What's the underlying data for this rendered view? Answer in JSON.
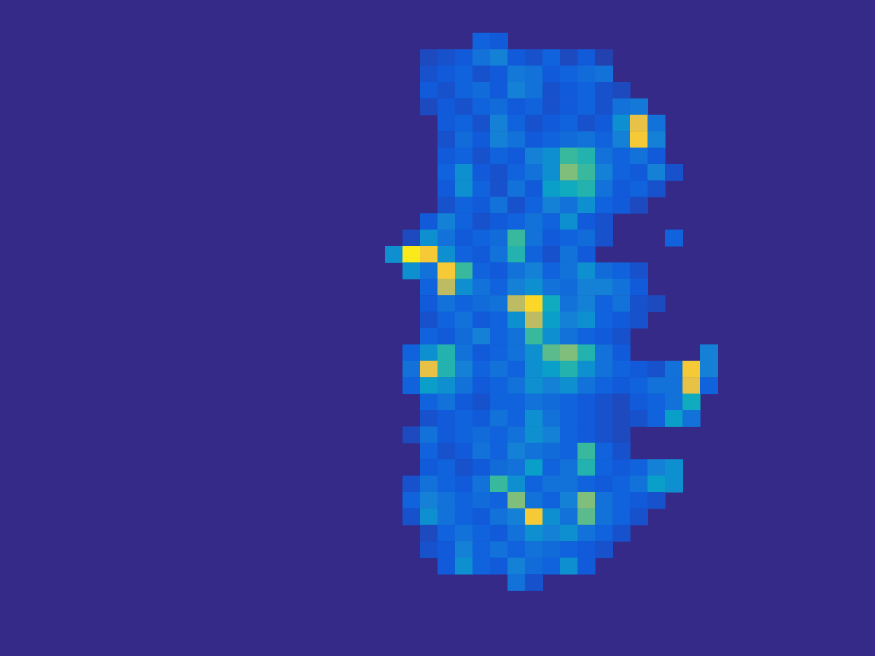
{
  "chart_data": {
    "type": "heatmap",
    "xlim": [
      0,
      50
    ],
    "ylim": [
      0,
      40
    ],
    "zlim": [
      0,
      1
    ],
    "tick_labels": false,
    "cells": [
      {
        "row": 2,
        "col": 27,
        "values": [
          0.15,
          0.12
        ]
      },
      {
        "row": 3,
        "col": 24,
        "values": [
          0.08,
          0.1,
          0.12,
          0.2,
          0.25,
          0.12,
          0.1,
          0.15,
          0.08,
          0.12,
          0.06
        ]
      },
      {
        "row": 4,
        "col": 24,
        "values": [
          0.1,
          0.12,
          0.15,
          0.1,
          0.12,
          0.22,
          0.2,
          0.12,
          0.15,
          0.18,
          0.2
        ]
      },
      {
        "row": 5,
        "col": 24,
        "values": [
          0.12,
          0.1,
          0.15,
          0.18,
          0.12,
          0.25,
          0.2,
          0.1,
          0.12,
          0.15,
          0.1,
          0.08
        ]
      },
      {
        "row": 6,
        "col": 24,
        "values": [
          0.08,
          0.12,
          0.1,
          0.15,
          0.18,
          0.12,
          0.15,
          0.1,
          0.12,
          0.15,
          0.1,
          0.2,
          0.22
        ]
      },
      {
        "row": 7,
        "col": 25,
        "values": [
          0.12,
          0.15,
          0.1,
          0.25,
          0.15,
          0.1,
          0.12,
          0.15,
          0.1,
          0.12,
          0.3,
          0.8,
          0.2
        ]
      },
      {
        "row": 8,
        "col": 25,
        "values": [
          0.1,
          0.18,
          0.12,
          0.25,
          0.2,
          0.12,
          0.15,
          0.18,
          0.2,
          0.15,
          0.25,
          0.85,
          0.25
        ]
      },
      {
        "row": 9,
        "col": 25,
        "values": [
          0.12,
          0.15,
          0.1,
          0.15,
          0.12,
          0.25,
          0.3,
          0.5,
          0.45,
          0.2,
          0.15,
          0.2,
          0.12
        ]
      },
      {
        "row": 10,
        "col": 25,
        "values": [
          0.15,
          0.3,
          0.12,
          0.1,
          0.15,
          0.2,
          0.3,
          0.6,
          0.5,
          0.25,
          0.15,
          0.12,
          0.25,
          0.1
        ]
      },
      {
        "row": 11,
        "col": 25,
        "values": [
          0.12,
          0.3,
          0.15,
          0.1,
          0.2,
          0.12,
          0.35,
          0.4,
          0.45,
          0.2,
          0.12,
          0.15,
          0.1
        ]
      },
      {
        "row": 12,
        "col": 25,
        "values": [
          0.1,
          0.15,
          0.12,
          0.2,
          0.1,
          0.15,
          0.25,
          0.2,
          0.3,
          0.15,
          0.12,
          0.08
        ]
      },
      {
        "row": 13,
        "col": 24,
        "values": [
          0.12,
          0.25,
          0.15,
          0.1,
          0.12,
          0.15,
          0.2,
          0.15,
          0.3,
          0.12,
          0.1
        ]
      },
      {
        "row": 14,
        "col": 23,
        "values": [
          0.08,
          0.3,
          0.2,
          0.12,
          0.15,
          0.18,
          0.5,
          0.2,
          0.12,
          0.15,
          0.18,
          0.1
        ]
      },
      {
        "row": 14,
        "col": 38,
        "values": [
          0.15
        ]
      },
      {
        "row": 15,
        "col": 22,
        "values": [
          0.3,
          0.95,
          0.85,
          0.3,
          0.15,
          0.12,
          0.2,
          0.45,
          0.15,
          0.1,
          0.2,
          0.12
        ]
      },
      {
        "row": 16,
        "col": 23,
        "values": [
          0.3,
          0.2,
          0.85,
          0.5,
          0.15,
          0.12,
          0.2,
          0.25,
          0.15,
          0.2,
          0.3,
          0.18,
          0.15,
          0.1
        ]
      },
      {
        "row": 17,
        "col": 24,
        "values": [
          0.15,
          0.7,
          0.3,
          0.2,
          0.15,
          0.25,
          0.3,
          0.2,
          0.18,
          0.25,
          0.25,
          0.2,
          0.12
        ]
      },
      {
        "row": 18,
        "col": 24,
        "values": [
          0.12,
          0.2,
          0.15,
          0.18,
          0.2,
          0.7,
          0.9,
          0.4,
          0.2,
          0.25,
          0.15,
          0.2,
          0.1,
          0.08
        ]
      },
      {
        "row": 19,
        "col": 24,
        "values": [
          0.1,
          0.15,
          0.2,
          0.12,
          0.15,
          0.3,
          0.7,
          0.35,
          0.25,
          0.3,
          0.15,
          0.12,
          0.1
        ]
      },
      {
        "row": 20,
        "col": 24,
        "values": [
          0.15,
          0.12,
          0.18,
          0.25,
          0.15,
          0.2,
          0.5,
          0.3,
          0.2,
          0.15,
          0.12,
          0.1
        ]
      },
      {
        "row": 21,
        "col": 23,
        "values": [
          0.15,
          0.3,
          0.45,
          0.2,
          0.12,
          0.15,
          0.2,
          0.3,
          0.55,
          0.6,
          0.45,
          0.2,
          0.12
        ]
      },
      {
        "row": 21,
        "col": 40,
        "values": [
          0.25
        ]
      },
      {
        "row": 22,
        "col": 23,
        "values": [
          0.2,
          0.8,
          0.45,
          0.25,
          0.15,
          0.2,
          0.15,
          0.3,
          0.35,
          0.45,
          0.3,
          0.2,
          0.15,
          0.12,
          0.1,
          0.2,
          0.85,
          0.25
        ]
      },
      {
        "row": 23,
        "col": 23,
        "values": [
          0.15,
          0.35,
          0.3,
          0.2,
          0.12,
          0.15,
          0.2,
          0.3,
          0.25,
          0.3,
          0.2,
          0.15,
          0.12,
          0.15,
          0.2,
          0.2,
          0.8,
          0.15
        ]
      },
      {
        "row": 24,
        "col": 24,
        "values": [
          0.15,
          0.2,
          0.12,
          0.1,
          0.15,
          0.15,
          0.2,
          0.18,
          0.15,
          0.12,
          0.1,
          0.08,
          0.12,
          0.15,
          0.2,
          0.4
        ]
      },
      {
        "row": 25,
        "col": 24,
        "values": [
          0.1,
          0.12,
          0.15,
          0.12,
          0.2,
          0.15,
          0.3,
          0.2,
          0.15,
          0.12,
          0.1,
          0.08,
          0.1,
          0.15,
          0.35,
          0.2
        ]
      },
      {
        "row": 26,
        "col": 23,
        "values": [
          0.08,
          0.2,
          0.12,
          0.15,
          0.18,
          0.15,
          0.2,
          0.3,
          0.25,
          0.15,
          0.12,
          0.1,
          0.08
        ]
      },
      {
        "row": 27,
        "col": 24,
        "values": [
          0.15,
          0.1,
          0.12,
          0.2,
          0.15,
          0.25,
          0.2,
          0.18,
          0.15,
          0.5,
          0.15,
          0.1
        ]
      },
      {
        "row": 28,
        "col": 24,
        "values": [
          0.12,
          0.15,
          0.1,
          0.12,
          0.18,
          0.2,
          0.35,
          0.15,
          0.2,
          0.45,
          0.15,
          0.12,
          0.15,
          0.25,
          0.3
        ]
      },
      {
        "row": 29,
        "col": 23,
        "values": [
          0.1,
          0.2,
          0.15,
          0.12,
          0.2,
          0.5,
          0.3,
          0.15,
          0.2,
          0.2,
          0.15,
          0.12,
          0.15,
          0.2,
          0.35,
          0.3
        ]
      },
      {
        "row": 30,
        "col": 23,
        "values": [
          0.15,
          0.25,
          0.2,
          0.15,
          0.18,
          0.15,
          0.6,
          0.2,
          0.15,
          0.25,
          0.6,
          0.2,
          0.15,
          0.12,
          0.1
        ]
      },
      {
        "row": 31,
        "col": 23,
        "values": [
          0.1,
          0.3,
          0.2,
          0.15,
          0.12,
          0.2,
          0.25,
          0.85,
          0.3,
          0.2,
          0.55,
          0.2,
          0.15,
          0.1
        ]
      },
      {
        "row": 32,
        "col": 24,
        "values": [
          0.08,
          0.15,
          0.2,
          0.15,
          0.12,
          0.2,
          0.3,
          0.25,
          0.3,
          0.2,
          0.15,
          0.1
        ]
      },
      {
        "row": 33,
        "col": 24,
        "values": [
          0.1,
          0.12,
          0.25,
          0.15,
          0.2,
          0.15,
          0.2,
          0.18,
          0.15,
          0.12,
          0.1
        ]
      },
      {
        "row": 34,
        "col": 25,
        "values": [
          0.12,
          0.3,
          0.15,
          0.12,
          0.25,
          0.18,
          0.15,
          0.3,
          0.12
        ]
      },
      {
        "row": 35,
        "col": 29,
        "values": [
          0.2,
          0.1
        ]
      }
    ]
  }
}
